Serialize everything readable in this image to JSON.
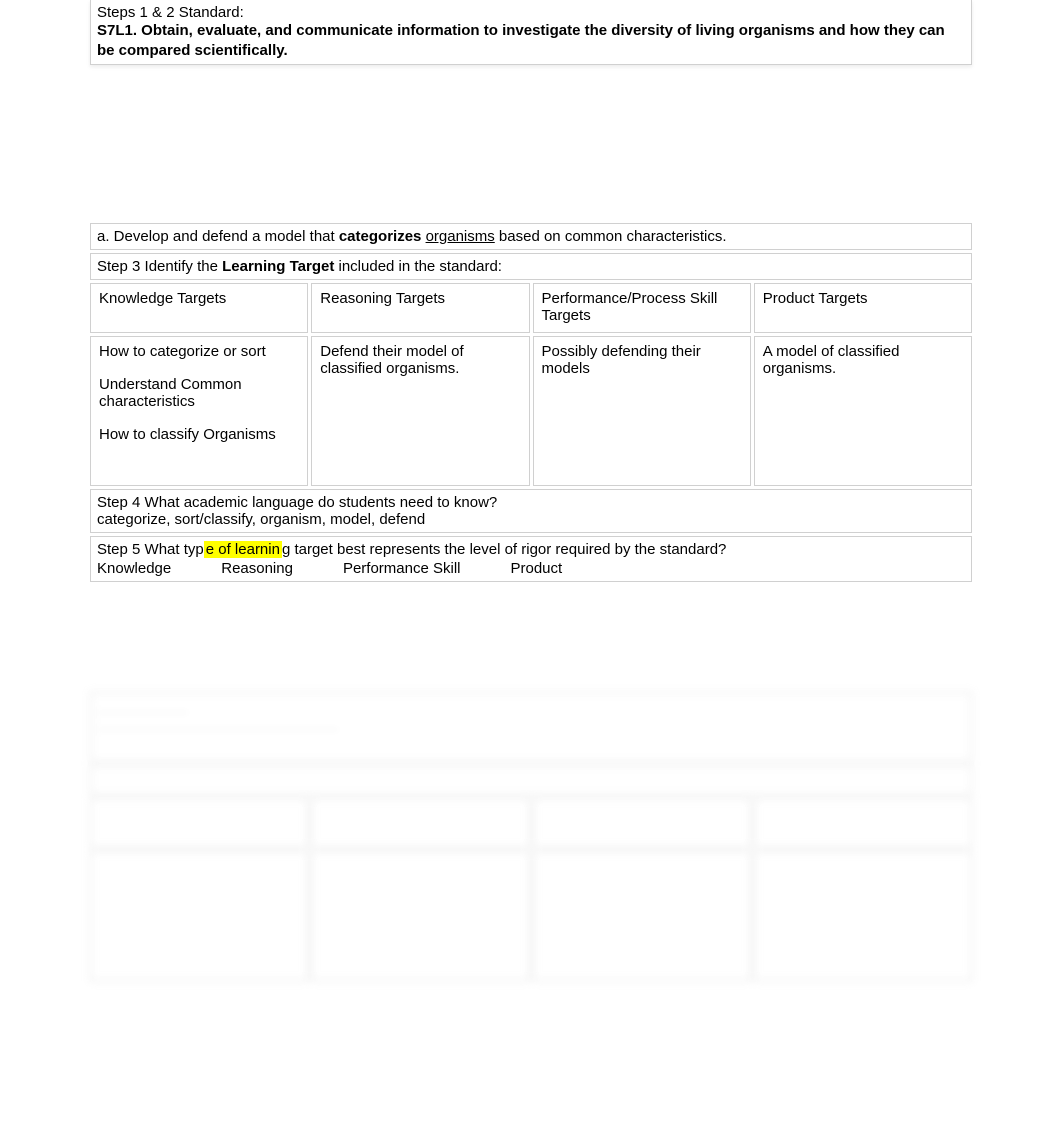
{
  "doc1": {
    "steps12_label": "Steps 1 & 2     Standard:",
    "standard": "S7L1. Obtain, evaluate, and communicate information to investigate the diversity of living organisms and how they can be compared scientifically.",
    "item_a_prefix": "a. Develop and defend a model that ",
    "item_a_bold": "categorizes",
    "item_a_mid": " ",
    "item_a_under": "organisms",
    "item_a_suffix": " based on common characteristics.",
    "step3_prefix": "Step 3      Identify the ",
    "step3_bold": "Learning Target",
    "step3_suffix": " included in the standard:",
    "headers": {
      "knowledge": "Knowledge Targets",
      "reasoning": "Reasoning Targets",
      "performance": "Performance/Process Skill Targets",
      "product": "Product Targets"
    },
    "knowledge_cell": {
      "line1": "How to categorize or sort",
      "line2": "Understand Common characteristics",
      "line3": "How to classify Organisms"
    },
    "reasoning_cell": "Defend their model of classified organisms.",
    "performance_cell": "Possibly defending their models",
    "product_cell": "A model of classified organisms.",
    "step4_q": "Step 4    What academic language do students need to know?",
    "step4_a": "categorize, sort/classify, organism, model, defend",
    "step5_q_pre": "Step 5   What typ",
    "step5_q_hl": "e of learnin",
    "step5_q_post": "g target best represents the level of rigor required by the standard?",
    "step5_options": {
      "o1": "Knowledge",
      "o2": "Reasoning",
      "o3": "Performance Skill",
      "o4": "Product"
    }
  },
  "colors": {
    "border": "#d0d0d0",
    "highlight": "#ffff00",
    "text": "#000000",
    "background": "#ffffff"
  }
}
